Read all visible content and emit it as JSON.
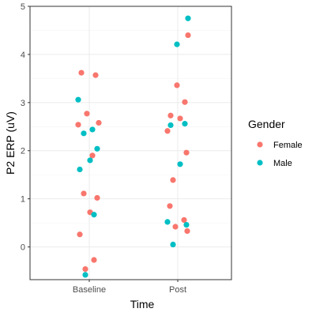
{
  "chart_data": {
    "type": "scatter",
    "xlabel": "Time",
    "ylabel": "P2 ERP (uV)",
    "categories": [
      "Baseline",
      "Post"
    ],
    "ylim": [
      -0.68,
      5.0
    ],
    "yticks": [
      0,
      1,
      2,
      3,
      4,
      5
    ],
    "grid": true,
    "legend": {
      "title": "Gender",
      "position": "right"
    },
    "series": [
      {
        "name": "Female",
        "color": "#F8766D",
        "points": [
          {
            "x": "Baseline",
            "y": 3.62
          },
          {
            "x": "Baseline",
            "y": 3.57
          },
          {
            "x": "Baseline",
            "y": 2.77
          },
          {
            "x": "Baseline",
            "y": 2.58
          },
          {
            "x": "Baseline",
            "y": 2.54
          },
          {
            "x": "Baseline",
            "y": 1.9
          },
          {
            "x": "Baseline",
            "y": 1.11
          },
          {
            "x": "Baseline",
            "y": 1.02
          },
          {
            "x": "Baseline",
            "y": 0.72
          },
          {
            "x": "Baseline",
            "y": 0.26
          },
          {
            "x": "Baseline",
            "y": -0.27
          },
          {
            "x": "Baseline",
            "y": -0.46
          },
          {
            "x": "Post",
            "y": 4.4
          },
          {
            "x": "Post",
            "y": 3.36
          },
          {
            "x": "Post",
            "y": 3.01
          },
          {
            "x": "Post",
            "y": 2.73
          },
          {
            "x": "Post",
            "y": 2.67
          },
          {
            "x": "Post",
            "y": 2.41
          },
          {
            "x": "Post",
            "y": 1.96
          },
          {
            "x": "Post",
            "y": 1.39
          },
          {
            "x": "Post",
            "y": 0.85
          },
          {
            "x": "Post",
            "y": 0.56
          },
          {
            "x": "Post",
            "y": 0.42
          },
          {
            "x": "Post",
            "y": 0.33
          }
        ]
      },
      {
        "name": "Male",
        "color": "#00BFC4",
        "points": [
          {
            "x": "Baseline",
            "y": 3.06
          },
          {
            "x": "Baseline",
            "y": 2.44
          },
          {
            "x": "Baseline",
            "y": 2.36
          },
          {
            "x": "Baseline",
            "y": 2.04
          },
          {
            "x": "Baseline",
            "y": 1.8
          },
          {
            "x": "Baseline",
            "y": 1.61
          },
          {
            "x": "Baseline",
            "y": 0.67
          },
          {
            "x": "Baseline",
            "y": -0.58
          },
          {
            "x": "Post",
            "y": 4.75
          },
          {
            "x": "Post",
            "y": 4.21
          },
          {
            "x": "Post",
            "y": 2.56
          },
          {
            "x": "Post",
            "y": 2.53
          },
          {
            "x": "Post",
            "y": 1.72
          },
          {
            "x": "Post",
            "y": 0.52
          },
          {
            "x": "Post",
            "y": 0.46
          },
          {
            "x": "Post",
            "y": 0.05
          }
        ]
      }
    ]
  }
}
